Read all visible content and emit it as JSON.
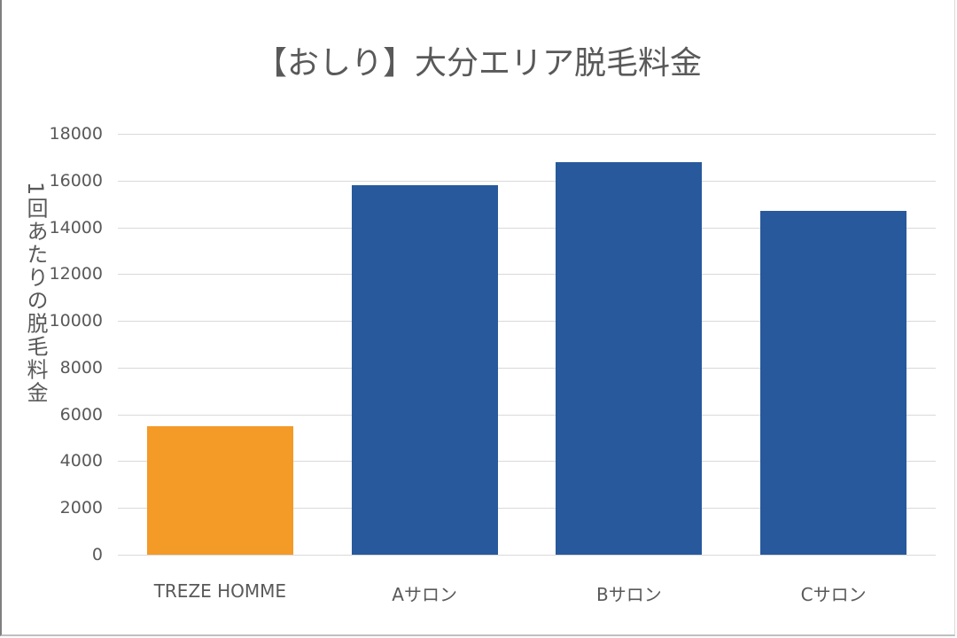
{
  "chart": {
    "title": "【おしり】大分エリア脱毛料金",
    "ylabel": "1回あたりの脱毛料金",
    "colors": {
      "highlight": "#F39A27",
      "default": "#27599C",
      "grid": "#D9D9D9",
      "text": "#595959"
    },
    "y_ticks": [
      "0",
      "2000",
      "4000",
      "6000",
      "8000",
      "10000",
      "12000",
      "14000",
      "16000",
      "18000"
    ],
    "categories": [
      "TREZE HOMME",
      "Aサロン",
      "Bサロン",
      "Cサロン"
    ]
  },
  "chart_data": {
    "type": "bar",
    "title": "【おしり】大分エリア脱毛料金",
    "xlabel": "",
    "ylabel": "1回あたりの脱毛料金",
    "categories": [
      "TREZE HOMME",
      "Aサロン",
      "Bサロン",
      "Cサロン"
    ],
    "values": [
      5500,
      15800,
      16800,
      14700
    ],
    "bar_colors": [
      "#F39A27",
      "#27599C",
      "#27599C",
      "#27599C"
    ],
    "ylim": [
      0,
      18000
    ],
    "y_tick_step": 2000,
    "grid": true,
    "legend": "none"
  }
}
